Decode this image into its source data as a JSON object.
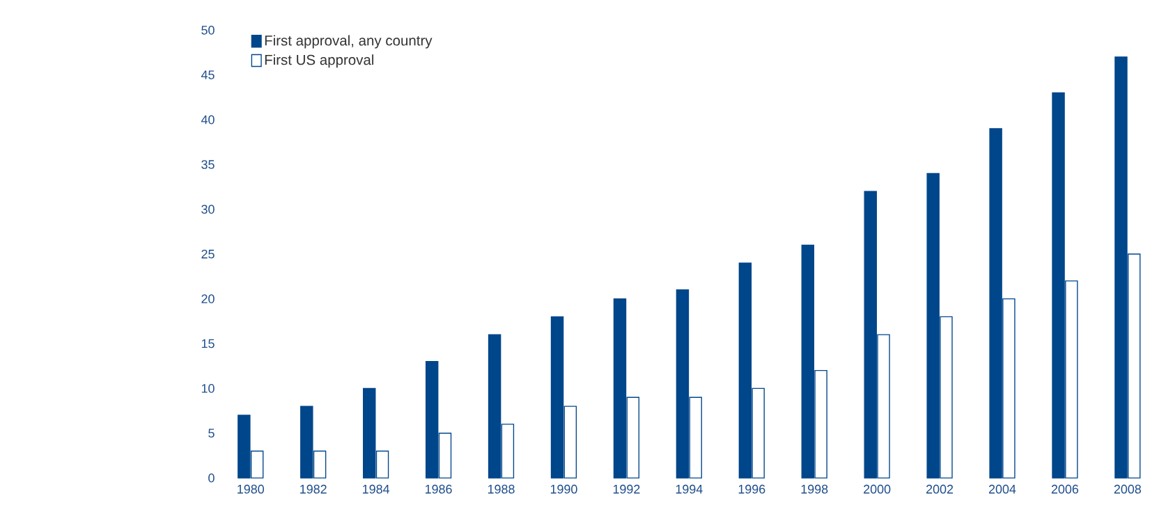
{
  "chart_data": {
    "type": "bar",
    "categories": [
      "1980",
      "1982",
      "1984",
      "1986",
      "1988",
      "1990",
      "1992",
      "1994",
      "1996",
      "1998",
      "2000",
      "2002",
      "2004",
      "2006",
      "2008"
    ],
    "series": [
      {
        "name": "First approval, any country",
        "color": "#00468b",
        "values": [
          7,
          8,
          10,
          13,
          16,
          18,
          20,
          21,
          24,
          26,
          32,
          34,
          39,
          43,
          47
        ]
      },
      {
        "name": "First US approval",
        "color": "#ffffff",
        "values": [
          3,
          3,
          3,
          5,
          6,
          8,
          9,
          9,
          10,
          12,
          16,
          18,
          20,
          22,
          25
        ]
      }
    ],
    "ylim": [
      0,
      50
    ],
    "yticks": [
      0,
      5,
      10,
      15,
      20,
      25,
      30,
      35,
      40,
      45,
      50
    ],
    "legend": "top left"
  }
}
